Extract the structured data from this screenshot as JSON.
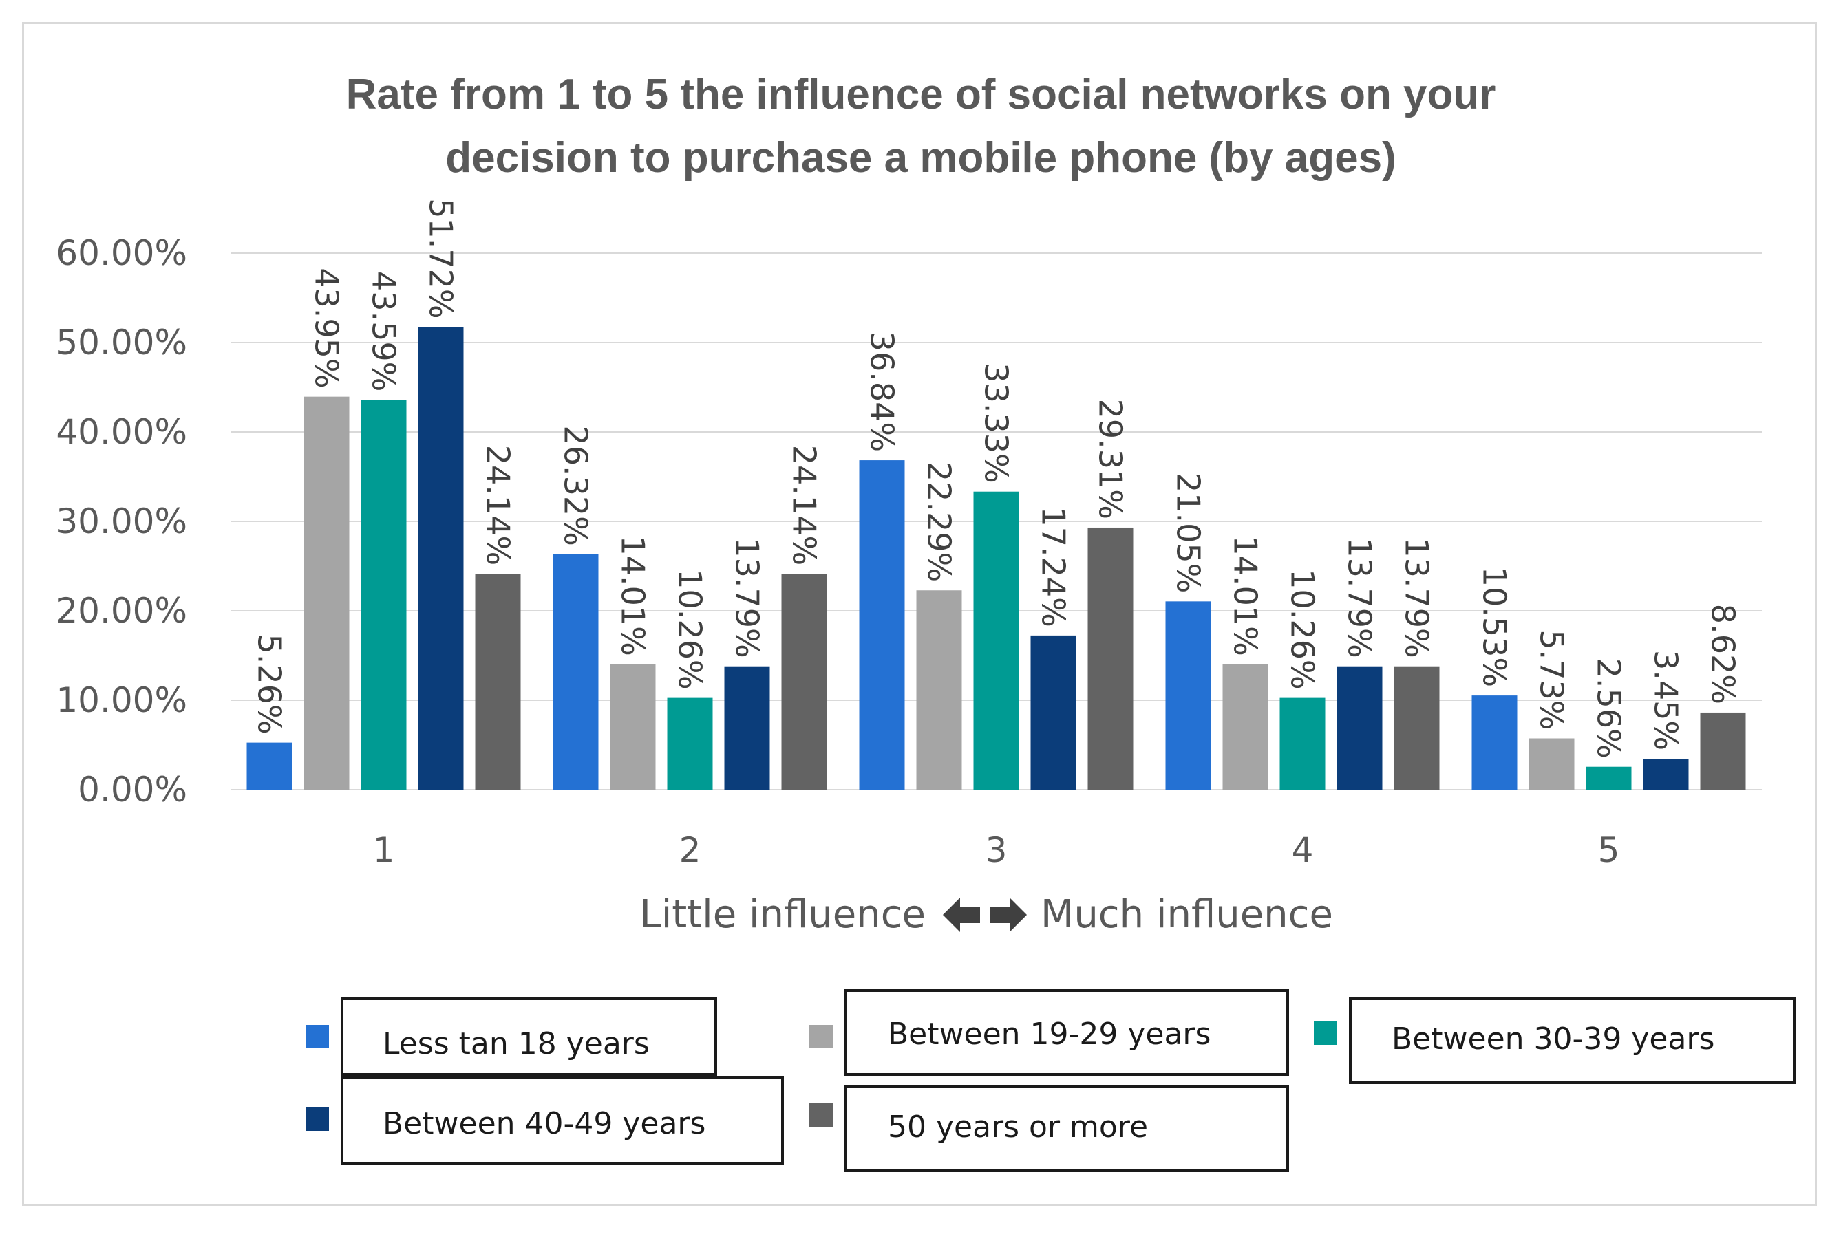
{
  "chart_data": {
    "type": "bar",
    "title": "Rate from 1 to 5 the influence of social networks on your decision to purchase a mobile phone (by ages)",
    "title_lines": [
      "Rate from 1 to 5 the influence of social networks on your",
      "decision to purchase a mobile phone (by ages)"
    ],
    "categories": [
      "1",
      "2",
      "3",
      "4",
      "5"
    ],
    "xlabel_left": "Little influence",
    "xlabel_right": "Much influence",
    "xlabel_arrow_icon": "left-right-arrow-icon",
    "ylabel": "",
    "ylim": [
      0,
      60
    ],
    "yticks": [
      "0.00%",
      "10.00%",
      "20.00%",
      "30.00%",
      "40.00%",
      "50.00%",
      "60.00%"
    ],
    "grid": true,
    "legend_position": "bottom",
    "series": [
      {
        "name": "Less tan 18 years",
        "color": "#2471d3",
        "values": [
          5.26,
          26.32,
          36.84,
          21.05,
          10.53
        ],
        "labels": [
          "5.26%",
          "26.32%",
          "36.84%",
          "21.05%",
          "10.53%"
        ]
      },
      {
        "name": "Between 19-29 years",
        "color": "#a5a5a5",
        "values": [
          43.95,
          14.01,
          22.29,
          14.01,
          5.73
        ],
        "labels": [
          "43.95%",
          "14.01%",
          "22.29%",
          "14.01%",
          "5.73%"
        ]
      },
      {
        "name": "Between 30-39 years",
        "color": "#009b93",
        "values": [
          43.59,
          10.26,
          33.33,
          10.26,
          2.56
        ],
        "labels": [
          "43.59%",
          "10.26%",
          "33.33%",
          "10.26%",
          "2.56%"
        ]
      },
      {
        "name": "Between 40-49 years",
        "color": "#0b3d7a",
        "values": [
          51.72,
          13.79,
          17.24,
          13.79,
          3.45
        ],
        "labels": [
          "51.72%",
          "13.79%",
          "17.24%",
          "13.79%",
          "3.45%"
        ]
      },
      {
        "name": "50 years or more",
        "color": "#636363",
        "values": [
          24.14,
          24.14,
          29.31,
          13.79,
          8.62
        ],
        "labels": [
          "24.14%",
          "24.14%",
          "29.31%",
          "13.79%",
          "8.62%"
        ]
      }
    ]
  }
}
